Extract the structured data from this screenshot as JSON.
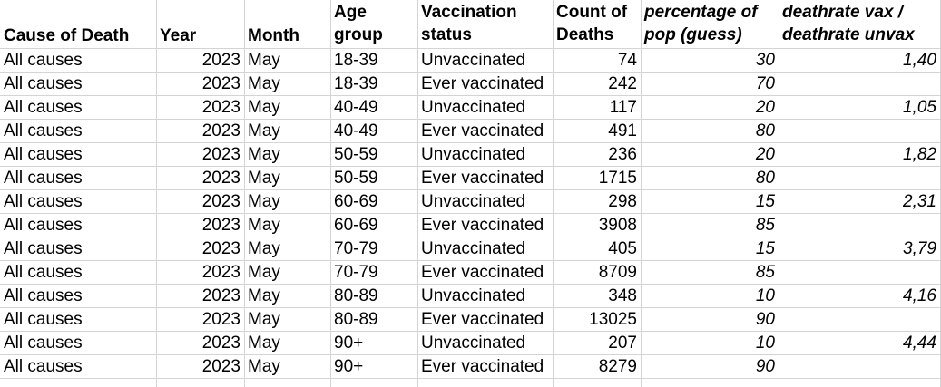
{
  "headers": {
    "cause": "Cause of Death",
    "year": "Year",
    "month": "Month",
    "age_line1": "Age",
    "age_line2": "group",
    "vax_line1": "Vaccination",
    "vax_line2": "status",
    "count_line1": "Count of",
    "count_line2": "Deaths",
    "pct_line1": "percentage of",
    "pct_line2": "pop (guess)",
    "ratio_line1": "deathrate vax /",
    "ratio_line2": "deathrate unvax"
  },
  "rows": [
    {
      "cause": "All causes",
      "year": "2023",
      "month": "May",
      "age": "18-39",
      "status": "Unvaccinated",
      "count": "74",
      "pct": "30",
      "ratio": "1,40"
    },
    {
      "cause": "All causes",
      "year": "2023",
      "month": "May",
      "age": "18-39",
      "status": "Ever vaccinated",
      "count": "242",
      "pct": "70",
      "ratio": ""
    },
    {
      "cause": "All causes",
      "year": "2023",
      "month": "May",
      "age": "40-49",
      "status": "Unvaccinated",
      "count": "117",
      "pct": "20",
      "ratio": "1,05"
    },
    {
      "cause": "All causes",
      "year": "2023",
      "month": "May",
      "age": "40-49",
      "status": "Ever vaccinated",
      "count": "491",
      "pct": "80",
      "ratio": ""
    },
    {
      "cause": "All causes",
      "year": "2023",
      "month": "May",
      "age": "50-59",
      "status": "Unvaccinated",
      "count": "236",
      "pct": "20",
      "ratio": "1,82"
    },
    {
      "cause": "All causes",
      "year": "2023",
      "month": "May",
      "age": "50-59",
      "status": "Ever vaccinated",
      "count": "1715",
      "pct": "80",
      "ratio": ""
    },
    {
      "cause": "All causes",
      "year": "2023",
      "month": "May",
      "age": "60-69",
      "status": "Unvaccinated",
      "count": "298",
      "pct": "15",
      "ratio": "2,31"
    },
    {
      "cause": "All causes",
      "year": "2023",
      "month": "May",
      "age": "60-69",
      "status": "Ever vaccinated",
      "count": "3908",
      "pct": "85",
      "ratio": ""
    },
    {
      "cause": "All causes",
      "year": "2023",
      "month": "May",
      "age": "70-79",
      "status": "Unvaccinated",
      "count": "405",
      "pct": "15",
      "ratio": "3,79"
    },
    {
      "cause": "All causes",
      "year": "2023",
      "month": "May",
      "age": "70-79",
      "status": "Ever vaccinated",
      "count": "8709",
      "pct": "85",
      "ratio": ""
    },
    {
      "cause": "All causes",
      "year": "2023",
      "month": "May",
      "age": "80-89",
      "status": "Unvaccinated",
      "count": "348",
      "pct": "10",
      "ratio": "4,16"
    },
    {
      "cause": "All causes",
      "year": "2023",
      "month": "May",
      "age": "80-89",
      "status": "Ever vaccinated",
      "count": "13025",
      "pct": "90",
      "ratio": ""
    },
    {
      "cause": "All causes",
      "year": "2023",
      "month": "May",
      "age": "90+",
      "status": "Unvaccinated",
      "count": "207",
      "pct": "10",
      "ratio": "4,44"
    },
    {
      "cause": "All causes",
      "year": "2023",
      "month": "May",
      "age": "90+",
      "status": "Ever vaccinated",
      "count": "8279",
      "pct": "90",
      "ratio": ""
    }
  ]
}
